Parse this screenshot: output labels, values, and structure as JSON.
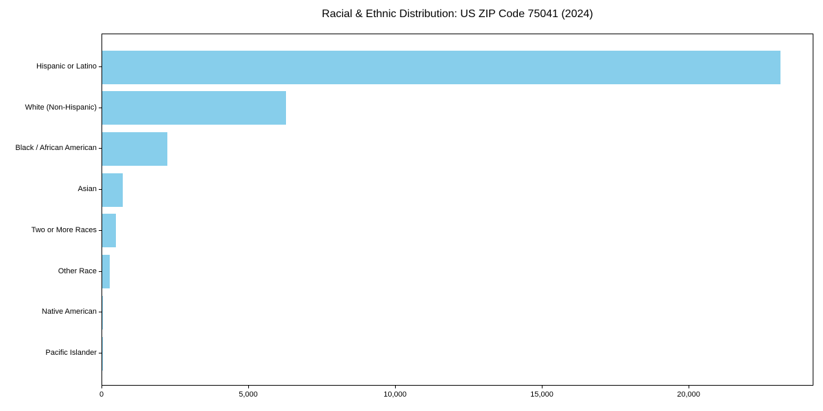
{
  "chart_data": {
    "type": "bar",
    "orientation": "horizontal",
    "title": "Racial & Ethnic Distribution: US ZIP Code 75041 (2024)",
    "categories": [
      "Hispanic or Latino",
      "White (Non-Hispanic)",
      "Black / African American",
      "Asian",
      "Two or More Races",
      "Other Race",
      "Native American",
      "Pacific Islander"
    ],
    "values": [
      23100,
      6250,
      2230,
      700,
      470,
      260,
      35,
      12
    ],
    "xlabel": "",
    "ylabel": "",
    "xlim": [
      0,
      24250
    ],
    "x_tick_values": [
      0,
      5000,
      10000,
      15000,
      20000
    ],
    "x_tick_labels": [
      "0",
      "5,000",
      "10,000",
      "15,000",
      "20,000"
    ],
    "grid": false,
    "legend": false,
    "bar_color": "#87CEEB",
    "axis_color": "#000000",
    "background_color": "#ffffff"
  }
}
